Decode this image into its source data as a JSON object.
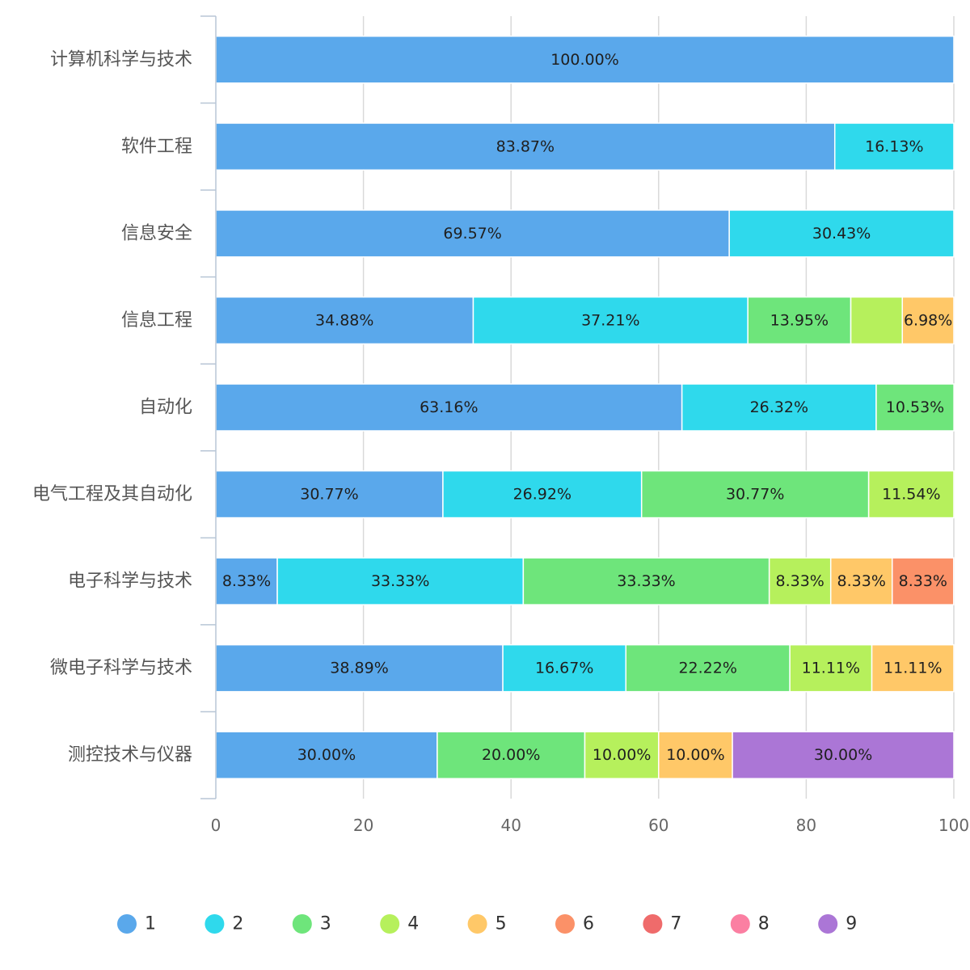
{
  "chart_data": {
    "type": "bar",
    "orientation": "horizontal",
    "stacked": true,
    "categories": [
      "计算机科学与技术",
      "软件工程",
      "信息安全",
      "信息工程",
      "自动化",
      "电气工程及其自动化",
      "电子科学与技术",
      "微电子科学与技术",
      "测控技术与仪器"
    ],
    "series": [
      {
        "name": "1",
        "color": "#5aa8eb",
        "values": [
          100.0,
          83.87,
          69.57,
          34.88,
          63.16,
          30.77,
          8.33,
          38.89,
          30.0
        ],
        "labels": [
          "100.00%",
          "83.87%",
          "69.57%",
          "34.88%",
          "63.16%",
          "30.77%",
          "8.33%",
          "38.89%",
          "30.00%"
        ]
      },
      {
        "name": "2",
        "color": "#2fd9ec",
        "values": [
          0,
          16.13,
          30.43,
          37.21,
          26.32,
          26.92,
          33.33,
          16.67,
          0
        ],
        "labels": [
          "",
          "16.13%",
          "30.43%",
          "37.21%",
          "26.32%",
          "26.92%",
          "33.33%",
          "16.67%",
          ""
        ]
      },
      {
        "name": "3",
        "color": "#6ee57b",
        "values": [
          0,
          0,
          0,
          13.95,
          10.53,
          30.77,
          33.33,
          22.22,
          20.0
        ],
        "labels": [
          "",
          "",
          "",
          "13.95%",
          "10.53%",
          "30.77%",
          "33.33%",
          "22.22%",
          "20.00%"
        ]
      },
      {
        "name": "4",
        "color": "#b6f05c",
        "values": [
          0,
          0,
          0,
          6.98,
          0,
          11.54,
          8.33,
          11.11,
          10.0
        ],
        "labels": [
          "",
          "",
          "",
          "",
          "",
          "11.54%",
          "8.33%",
          "11.11%",
          "10.00%"
        ]
      },
      {
        "name": "5",
        "color": "#ffc868",
        "values": [
          0,
          0,
          0,
          6.98,
          0,
          0,
          8.33,
          11.11,
          10.0
        ],
        "labels": [
          "",
          "",
          "",
          "6.98%",
          "",
          "",
          "8.33%",
          "11.11%",
          "10.00%"
        ]
      },
      {
        "name": "6",
        "color": "#fb9168",
        "values": [
          0,
          0,
          0,
          0,
          0,
          0,
          8.33,
          0,
          0
        ],
        "labels": [
          "",
          "",
          "",
          "",
          "",
          "",
          "8.33%",
          "",
          ""
        ]
      },
      {
        "name": "7",
        "color": "#ef6b6b",
        "values": [
          0,
          0,
          0,
          0,
          0,
          0,
          0,
          0,
          0
        ],
        "labels": [
          "",
          "",
          "",
          "",
          "",
          "",
          "",
          "",
          ""
        ]
      },
      {
        "name": "8",
        "color": "#fb7fa2",
        "values": [
          0,
          0,
          0,
          0,
          0,
          0,
          0,
          0,
          0
        ],
        "labels": [
          "",
          "",
          "",
          "",
          "",
          "",
          "",
          "",
          ""
        ]
      },
      {
        "name": "9",
        "color": "#ab76d6",
        "values": [
          0,
          0,
          0,
          0,
          0,
          0,
          0,
          0,
          30.0
        ],
        "labels": [
          "",
          "",
          "",
          "",
          "",
          "",
          "",
          "",
          "30.00%"
        ]
      }
    ],
    "xlim": [
      0,
      100
    ],
    "xticks": [
      "0",
      "20",
      "40",
      "60",
      "80",
      "100"
    ],
    "grid": true,
    "legend_position": "bottom"
  }
}
